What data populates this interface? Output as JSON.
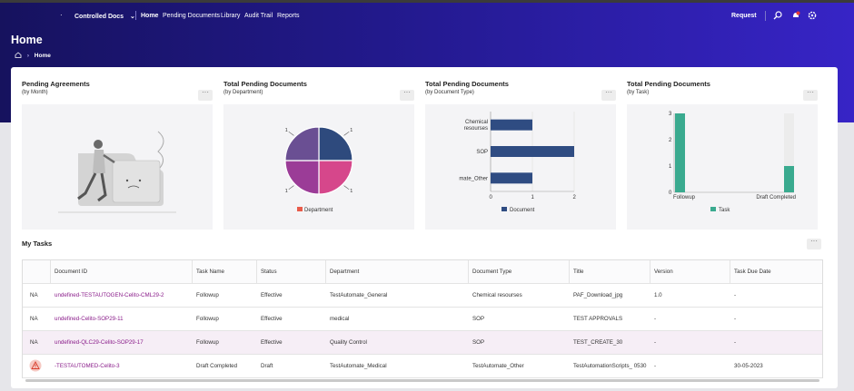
{
  "nav": {
    "app_name": "Controlled Docs",
    "links": [
      "Home",
      "Pending Documents",
      "Library",
      "Audit Trail",
      "Reports"
    ],
    "request_label": "Request"
  },
  "page": {
    "title": "Home",
    "breadcrumb": "Home"
  },
  "cards": [
    {
      "title": "Pending Agreements",
      "subtitle": "(by Month)"
    },
    {
      "title": "Total Pending Documents",
      "subtitle": "(by Department)"
    },
    {
      "title": "Total Pending Documents",
      "subtitle": "(by Document Type)"
    },
    {
      "title": "Total Pending Documents",
      "subtitle": "(by Task)"
    }
  ],
  "chart_data": [
    {
      "type": "pie",
      "values": [
        1,
        1,
        1,
        1
      ],
      "slice_labels": [
        "1",
        "1",
        "1",
        "1"
      ],
      "colors": [
        "#2e4a7d",
        "#d6478b",
        "#9b3c97",
        "#6a4f93"
      ],
      "legend": [
        "Department"
      ],
      "legend_color": "#e85b4a"
    },
    {
      "type": "bar",
      "orientation": "horizontal",
      "categories": [
        "Chemical resourses",
        "SOP",
        "mate_Other"
      ],
      "series": [
        {
          "name": "Document",
          "values": [
            1,
            2,
            1
          ]
        }
      ],
      "xlim": [
        0,
        2
      ],
      "xticks": [
        "0",
        "1",
        "2"
      ],
      "color": "#2f4c82"
    },
    {
      "type": "bar",
      "categories": [
        "Followup",
        "Draft Completed"
      ],
      "series": [
        {
          "name": "Task",
          "values": [
            3,
            1
          ]
        }
      ],
      "ylim": [
        0,
        3
      ],
      "yticks": [
        "0",
        "1",
        "2",
        "3"
      ],
      "color": "#3aaa8f"
    }
  ],
  "tasks": {
    "title": "My Tasks",
    "columns": [
      "Document ID",
      "Task Name",
      "Status",
      "Department",
      "Document Type",
      "Title",
      "Version",
      "Task Due Date"
    ],
    "rows": [
      {
        "badge": "NA",
        "doc_id": "undefined-TESTAUTOGEN-Celito-CML29-2",
        "task": "Followup",
        "status": "Effective",
        "dept": "TestAutomate_General",
        "type": "Chemical resourses",
        "title": "PAF_Download_jpg",
        "version": "1.0",
        "due": "-"
      },
      {
        "badge": "NA",
        "doc_id": "undefined-Celito-SOP29-11",
        "task": "Followup",
        "status": "Effective",
        "dept": "medical",
        "type": "SOP",
        "title": "TEST APPROVALS",
        "version": "-",
        "due": "-"
      },
      {
        "badge": "NA",
        "doc_id": "undefined-QLC29-Celito-SOP29-17",
        "task": "Followup",
        "status": "Effective",
        "dept": "Quality Control",
        "type": "SOP",
        "title": "TEST_CREATE_30",
        "version": "-",
        "due": "-"
      },
      {
        "badge": "warning",
        "doc_id": "-TESTAUTOMED-Celito-3",
        "task": "Draft Completed",
        "status": "Draft",
        "dept": "TestAutomate_Medical",
        "type": "TestAutomate_Other",
        "title": "TestAutomationScripts_ 0530",
        "version": "-",
        "due": "30-05-2023"
      }
    ]
  }
}
